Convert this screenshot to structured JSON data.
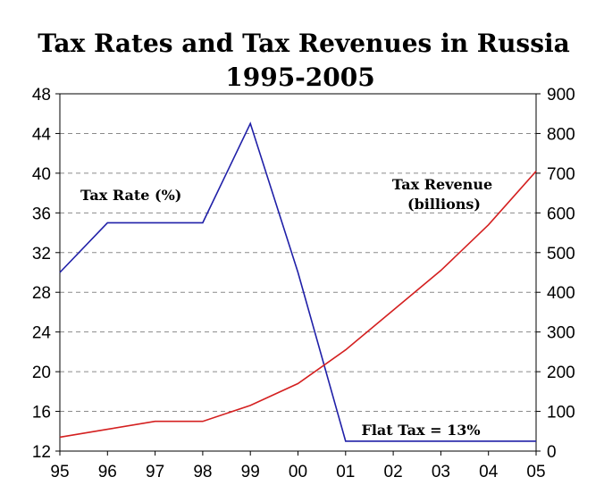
{
  "chart_data": {
    "type": "line",
    "title": "Tax Rates and Tax Revenues in Russia",
    "subtitle": "1995-2005",
    "categories": [
      "95",
      "96",
      "97",
      "98",
      "99",
      "00",
      "01",
      "02",
      "03",
      "04",
      "05"
    ],
    "y_left": {
      "ticks": [
        12,
        16,
        20,
        24,
        28,
        32,
        36,
        40,
        44,
        48
      ],
      "ylim": [
        12,
        48
      ]
    },
    "y_right": {
      "ticks": [
        0,
        100,
        200,
        300,
        400,
        500,
        600,
        700,
        800,
        900
      ],
      "ylim": [
        0,
        900
      ]
    },
    "grid": true,
    "series": [
      {
        "name": "Tax Rate (%)",
        "axis": "left",
        "color": "#2020a8",
        "points": [
          [
            1995,
            30
          ],
          [
            1996,
            35
          ],
          [
            1997,
            35
          ],
          [
            1998,
            35
          ],
          [
            1999,
            45
          ],
          [
            2000,
            30
          ],
          [
            2001,
            13
          ],
          [
            2002,
            13
          ],
          [
            2003,
            13
          ],
          [
            2004,
            13
          ],
          [
            2005,
            13
          ]
        ]
      },
      {
        "name": "Tax Revenue (billions)",
        "axis": "right",
        "color": "#d42020",
        "points": [
          [
            1995,
            35
          ],
          [
            1996,
            55
          ],
          [
            1997,
            75
          ],
          [
            1998,
            75
          ],
          [
            1999,
            115
          ],
          [
            2000,
            170
          ],
          [
            2001,
            255
          ],
          [
            2002,
            355
          ],
          [
            2003,
            455
          ],
          [
            2004,
            570
          ],
          [
            2005,
            705
          ]
        ]
      }
    ],
    "annotations": {
      "tax_rate": "Tax Rate (%)",
      "tax_revenue_line1": "Tax Revenue",
      "tax_revenue_line2": "(billions)",
      "flat_tax": "Flat Tax = 13%"
    }
  }
}
